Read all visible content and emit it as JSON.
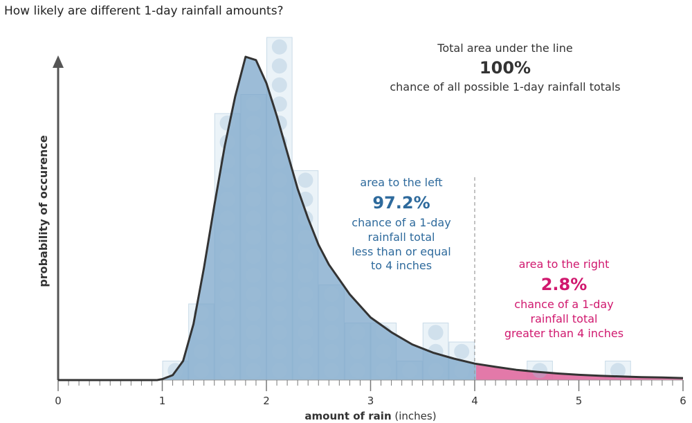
{
  "title": "How likely are different 1-day rainfall amounts?",
  "chart_data": {
    "type": "area",
    "xlabel_bold": "amount of rain",
    "xlabel_unit": "(inches)",
    "ylabel": "probability of occurence",
    "xlim": [
      0,
      6
    ],
    "x_ticks": [
      "0",
      "1",
      "2",
      "3",
      "4",
      "5",
      "6"
    ],
    "threshold": 4,
    "curve": {
      "x": [
        0,
        0.5,
        0.95,
        1.0,
        1.1,
        1.2,
        1.3,
        1.4,
        1.5,
        1.6,
        1.7,
        1.8,
        1.9,
        2.0,
        2.1,
        2.2,
        2.3,
        2.4,
        2.5,
        2.6,
        2.8,
        3.0,
        3.2,
        3.4,
        3.6,
        3.8,
        4.0,
        4.2,
        4.4,
        4.6,
        4.8,
        5.0,
        5.2,
        5.4,
        5.6,
        5.8,
        6.0
      ],
      "y": [
        0,
        0,
        0,
        0.3,
        1.5,
        5.8,
        17,
        34,
        53,
        71,
        86,
        98,
        97,
        90,
        80,
        69,
        58,
        49,
        41,
        35,
        26,
        19,
        14.5,
        10.8,
        8.3,
        6.5,
        5.0,
        4.0,
        3.1,
        2.5,
        2.0,
        1.6,
        1.3,
        1.1,
        0.9,
        0.8,
        0.6
      ]
    },
    "histogram": {
      "bin_width": 0.25,
      "x_start": [
        1.0,
        1.25,
        1.5,
        1.75,
        2.0,
        2.25,
        2.5,
        2.75,
        3.0,
        3.25,
        3.5,
        3.75,
        4.0,
        4.25,
        4.5,
        4.75,
        5.0,
        5.25,
        5.5,
        5.75
      ],
      "counts": [
        1,
        4,
        14,
        15,
        18,
        11,
        5,
        3,
        3,
        1,
        3,
        2,
        0,
        0,
        1,
        0,
        0,
        1,
        0,
        0
      ]
    },
    "colors": {
      "area_left": "#7ba6c9",
      "area_right": "#e06aa0",
      "line": "#333333",
      "axis": "#555555",
      "left_text": "#2e6a9c",
      "right_text": "#d0186e"
    }
  },
  "annotations": {
    "total": {
      "line1": "Total area under the line",
      "value": "100%",
      "line2": "chance of all possible 1-day rainfall totals"
    },
    "left": {
      "line1": "area to the left",
      "value": "97.2%",
      "line2": "chance of a 1-day",
      "line3": "rainfall total",
      "line4": "less than or equal",
      "line5": "to 4 inches"
    },
    "right": {
      "line1": "area to the right",
      "value": "2.8%",
      "line2": "chance of a 1-day",
      "line3": "rainfall total",
      "line4": "greater than 4 inches"
    }
  }
}
